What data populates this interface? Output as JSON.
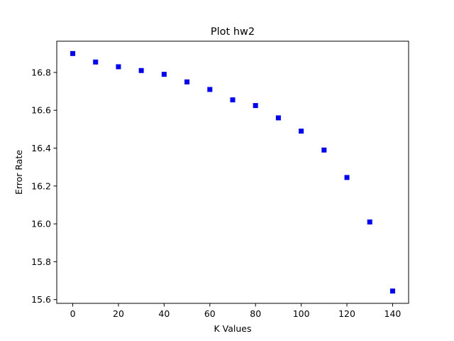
{
  "chart_data": {
    "type": "scatter",
    "title": "Plot hw2",
    "xlabel": "K Values",
    "ylabel": "Error Rate",
    "xlim": [
      -7,
      147
    ],
    "ylim": [
      15.58,
      16.965
    ],
    "xticks": [
      0,
      20,
      40,
      60,
      80,
      100,
      120,
      140
    ],
    "yticks": [
      15.6,
      15.8,
      16.0,
      16.2,
      16.4,
      16.6,
      16.8
    ],
    "ytick_labels": [
      "15.6",
      "15.8",
      "16.0",
      "16.2",
      "16.4",
      "16.6",
      "16.8"
    ],
    "grid": false,
    "marker": "square",
    "color": "#0000ff",
    "series": [
      {
        "x": [
          0,
          10,
          20,
          30,
          40,
          50,
          60,
          70,
          80,
          90,
          100,
          110,
          120,
          130,
          140
        ],
        "y": [
          16.9,
          16.855,
          16.83,
          16.81,
          16.79,
          16.75,
          16.71,
          16.655,
          16.625,
          16.56,
          16.49,
          16.39,
          16.245,
          16.01,
          15.645
        ]
      }
    ]
  }
}
